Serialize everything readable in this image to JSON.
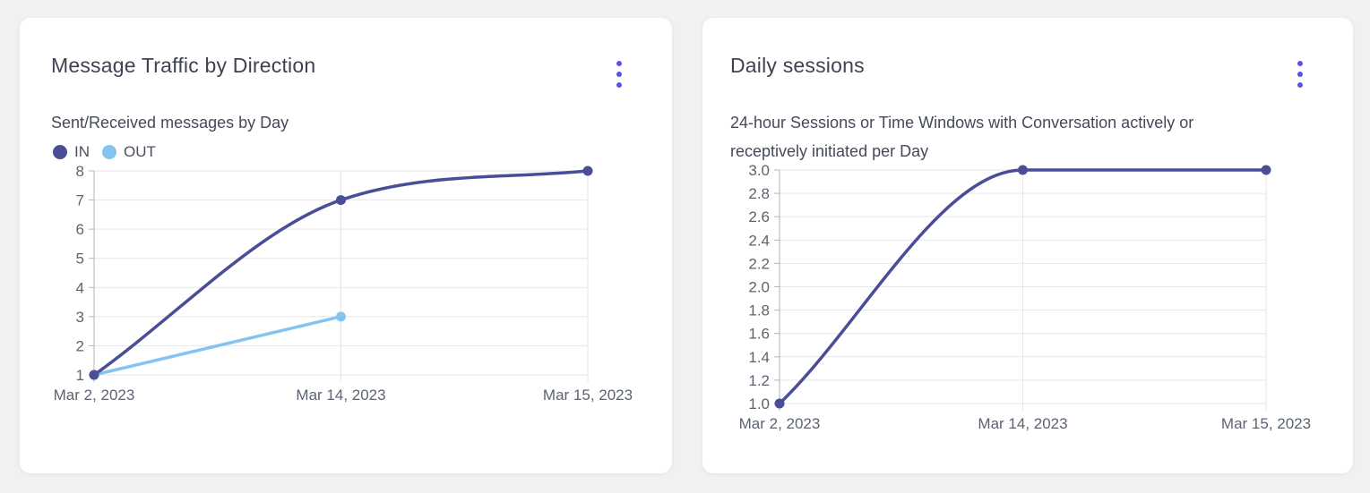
{
  "page_background": "#f1f1f3",
  "accent_colors": {
    "menu_dots": "#5b52ee",
    "primary_line": "#4a4e96",
    "secondary_line": "#85c4f0"
  },
  "menu_icon": "kebab-vertical-dots",
  "chart_data": [
    {
      "type": "line",
      "title": "Message Traffic by Direction",
      "subtitle_lines": [
        "Sent/Received messages by Day"
      ],
      "categories": [
        "Mar 2, 2023",
        "Mar 14, 2023",
        "Mar 15, 2023"
      ],
      "series": [
        {
          "name": "IN",
          "color": "#4a4e96",
          "values": [
            1,
            7,
            8
          ]
        },
        {
          "name": "OUT",
          "color": "#85c4f0",
          "values": [
            1,
            3,
            null
          ]
        }
      ],
      "ylim": [
        1,
        8
      ],
      "yticks": [
        8,
        7,
        6,
        5,
        4,
        3,
        2,
        1
      ],
      "y_decimals": 0,
      "xlabel": "",
      "ylabel": "",
      "grid": true,
      "legend": true,
      "legend_position": "top-left"
    },
    {
      "type": "line",
      "title": "Daily sessions",
      "subtitle_lines": [
        "24-hour Sessions or Time Windows with Conversation actively or",
        "receptively initiated per Day"
      ],
      "categories": [
        "Mar 2, 2023",
        "Mar 14, 2023",
        "Mar 15, 2023"
      ],
      "series": [
        {
          "color": "#4a4e96",
          "values": [
            1,
            3,
            3
          ]
        }
      ],
      "ylim": [
        1,
        3
      ],
      "yticks": [
        3.0,
        2.8,
        2.6,
        2.4,
        2.2,
        2.0,
        1.8,
        1.6,
        1.4,
        1.2,
        1.0
      ],
      "y_decimals": 1,
      "xlabel": "",
      "ylabel": "",
      "grid": true,
      "legend": false
    }
  ]
}
